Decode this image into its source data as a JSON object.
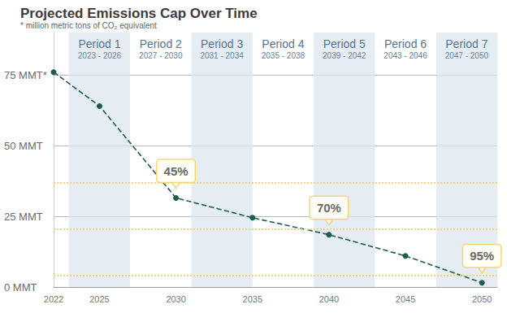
{
  "chart_data": {
    "type": "line",
    "title": "Projected Emissions Cap Over Time",
    "subtitle": "* million metric tons of CO₂ equivalent",
    "x": [
      2022,
      2025,
      2030,
      2035,
      2040,
      2045,
      2050
    ],
    "values": [
      76,
      64,
      31.5,
      24.5,
      18.5,
      11,
      1.5
    ],
    "color": "#1e5b50",
    "marker": "circle",
    "line_style": "dashed",
    "xlim": [
      2022,
      2051
    ],
    "xticks": [
      2022,
      2025,
      2030,
      2035,
      2040,
      2045,
      2050
    ],
    "ylim": [
      0,
      90
    ],
    "yticks": [
      {
        "value": 0,
        "label": "0 MMT"
      },
      {
        "value": 25,
        "label": "25 MMT"
      },
      {
        "value": 50,
        "label": "50 MMT"
      },
      {
        "value": 75,
        "label": "75 MMT*"
      }
    ],
    "grid": true,
    "periods": [
      {
        "name": "Period 1",
        "years": "2023 - 2026",
        "from": 2023,
        "to": 2027,
        "color": "#dce7ef"
      },
      {
        "name": "Period 2",
        "years": "2027 - 2030",
        "from": 2027,
        "to": 2031
      },
      {
        "name": "Period 3",
        "years": "2031 - 2034",
        "from": 2031,
        "to": 2035,
        "color": "#dce7ef"
      },
      {
        "name": "Period 4",
        "years": "2035 - 2038",
        "from": 2035,
        "to": 2039
      },
      {
        "name": "Period 5",
        "years": "2039 - 2042",
        "from": 2039,
        "to": 2043,
        "color": "#dce7ef"
      },
      {
        "name": "Period 6",
        "years": "2043 - 2046",
        "from": 2043,
        "to": 2047
      },
      {
        "name": "Period 7",
        "years": "2047 - 2050",
        "from": 2047,
        "to": 2051,
        "color": "#dce7ef"
      }
    ],
    "reference_lines": {
      "values": [
        37,
        20.4,
        4.2
      ],
      "color": "#f3d46e"
    },
    "annotations": [
      {
        "x": 2030,
        "text": "45%"
      },
      {
        "x": 2040,
        "text": "70%"
      },
      {
        "x": 2050,
        "text": "95%"
      }
    ]
  }
}
